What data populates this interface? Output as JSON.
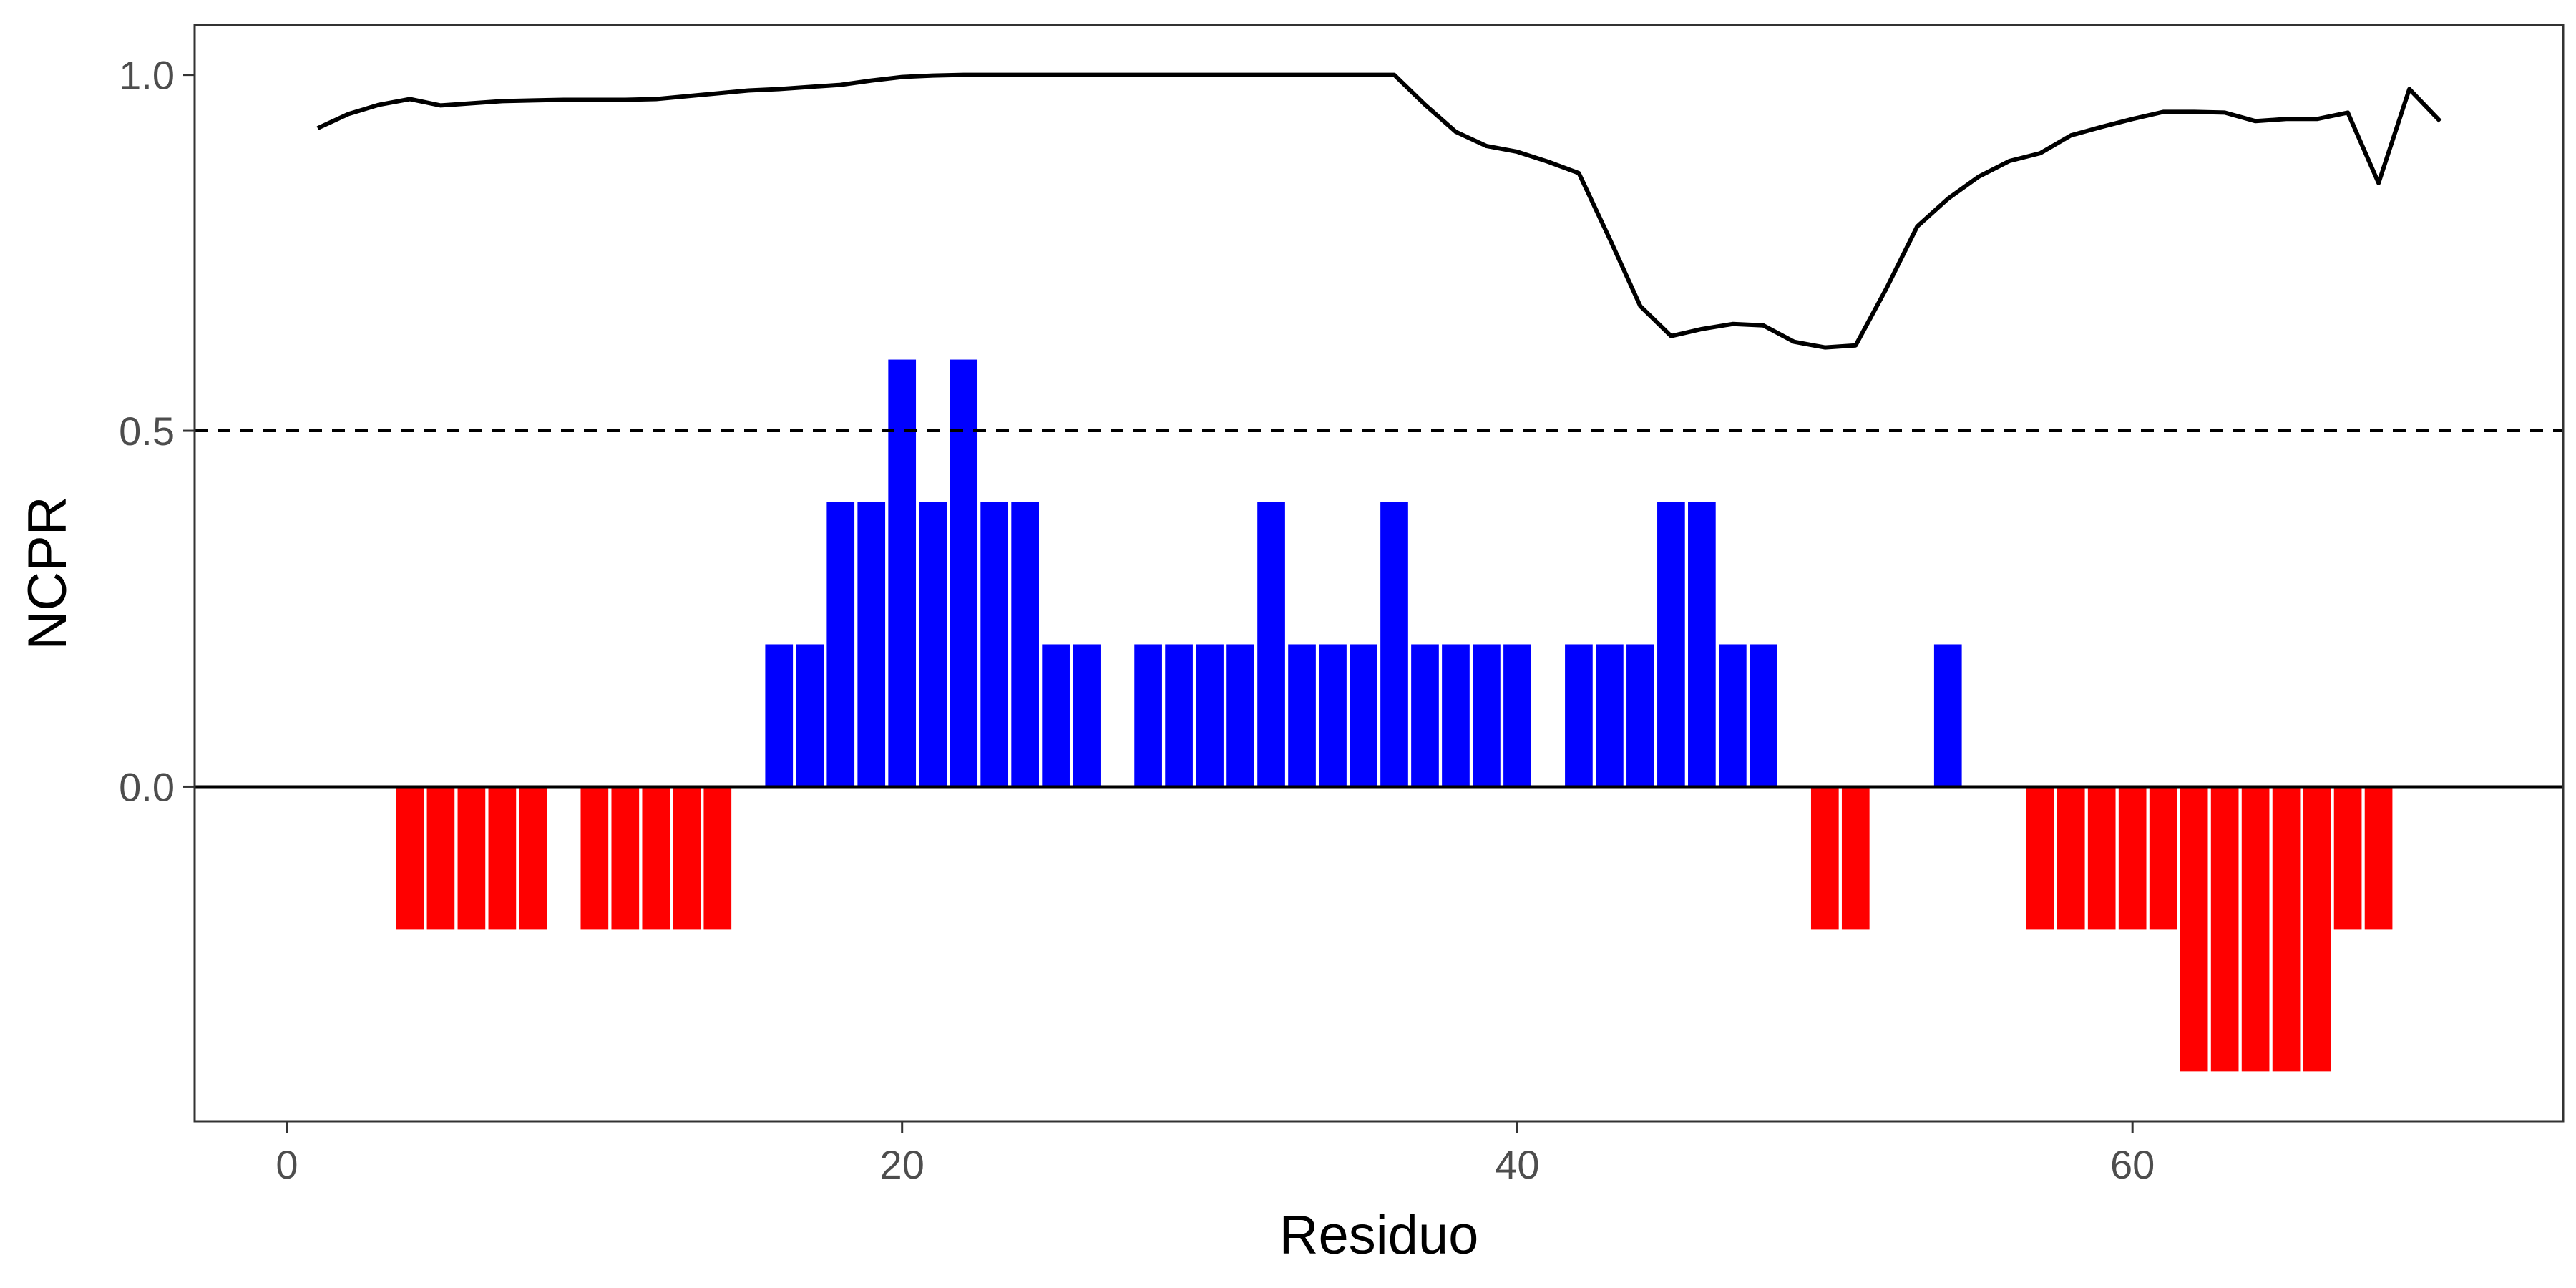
{
  "chart_data": {
    "type": "bar",
    "xlabel": "Residuo",
    "ylabel": "NCPR",
    "xlim": [
      -3,
      74
    ],
    "ylim": [
      -0.47,
      1.07
    ],
    "x_ticks": [
      0,
      20,
      40,
      60
    ],
    "y_ticks": [
      0.0,
      0.5,
      1.0
    ],
    "x_tick_labels": [
      "0",
      "20",
      "40",
      "60"
    ],
    "y_tick_labels": [
      "0.0",
      "0.5",
      "1.0"
    ],
    "grid": false,
    "legend": "none",
    "reference_lines": [
      {
        "y": 0.5,
        "style": "dashed",
        "color": "#000000"
      },
      {
        "y": 0.0,
        "style": "solid",
        "color": "#000000"
      }
    ],
    "bars": {
      "x": [
        4,
        5,
        6,
        7,
        8,
        10,
        11,
        12,
        13,
        14,
        16,
        17,
        18,
        19,
        20,
        21,
        22,
        23,
        24,
        25,
        26,
        28,
        29,
        30,
        31,
        32,
        33,
        34,
        35,
        36,
        37,
        38,
        39,
        40,
        42,
        43,
        44,
        45,
        46,
        47,
        48,
        50,
        51,
        54,
        57,
        58,
        59,
        60,
        61,
        62,
        63,
        64,
        65,
        66,
        67,
        68
      ],
      "values": [
        -0.2,
        -0.2,
        -0.2,
        -0.2,
        -0.2,
        -0.2,
        -0.2,
        -0.2,
        -0.2,
        -0.2,
        0.2,
        0.2,
        0.4,
        0.4,
        0.6,
        0.4,
        0.6,
        0.4,
        0.4,
        0.2,
        0.2,
        0.2,
        0.2,
        0.2,
        0.2,
        0.4,
        0.2,
        0.2,
        0.2,
        0.4,
        0.2,
        0.2,
        0.2,
        0.2,
        0.2,
        0.2,
        0.2,
        0.4,
        0.4,
        0.2,
        0.2,
        -0.2,
        -0.2,
        0.2,
        -0.2,
        -0.2,
        -0.2,
        -0.2,
        -0.2,
        -0.4,
        -0.4,
        -0.4,
        -0.4,
        -0.4,
        -0.2,
        -0.2
      ],
      "positive_color": "#0000ff",
      "negative_color": "#ff0000"
    },
    "line": {
      "color": "#000000",
      "x": [
        1,
        2,
        3,
        4,
        5,
        6,
        7,
        8,
        9,
        10,
        11,
        12,
        13,
        14,
        15,
        16,
        17,
        18,
        19,
        20,
        21,
        22,
        23,
        24,
        25,
        26,
        27,
        28,
        29,
        30,
        31,
        32,
        33,
        34,
        35,
        36,
        37,
        38,
        39,
        40,
        41,
        42,
        43,
        44,
        45,
        46,
        47,
        48,
        49,
        50,
        51,
        52,
        53,
        54,
        55,
        56,
        57,
        58,
        59,
        60,
        61,
        62,
        63,
        64,
        65,
        66,
        67,
        68,
        69,
        70
      ],
      "y": [
        0.925,
        0.945,
        0.958,
        0.966,
        0.957,
        0.96,
        0.963,
        0.964,
        0.965,
        0.965,
        0.965,
        0.966,
        0.97,
        0.974,
        0.978,
        0.98,
        0.983,
        0.986,
        0.992,
        0.997,
        0.999,
        1.0,
        1.0,
        1.0,
        1.0,
        1.0,
        1.0,
        1.0,
        1.0,
        1.0,
        1.0,
        1.0,
        1.0,
        1.0,
        1.0,
        1.0,
        0.958,
        0.92,
        0.9,
        0.892,
        0.878,
        0.862,
        0.77,
        0.675,
        0.633,
        0.643,
        0.65,
        0.648,
        0.625,
        0.617,
        0.62,
        0.7,
        0.787,
        0.826,
        0.857,
        0.879,
        0.89,
        0.915,
        0.927,
        0.938,
        0.948,
        0.948,
        0.947,
        0.935,
        0.938,
        0.938,
        0.947,
        0.848,
        0.98,
        0.935
      ]
    }
  }
}
